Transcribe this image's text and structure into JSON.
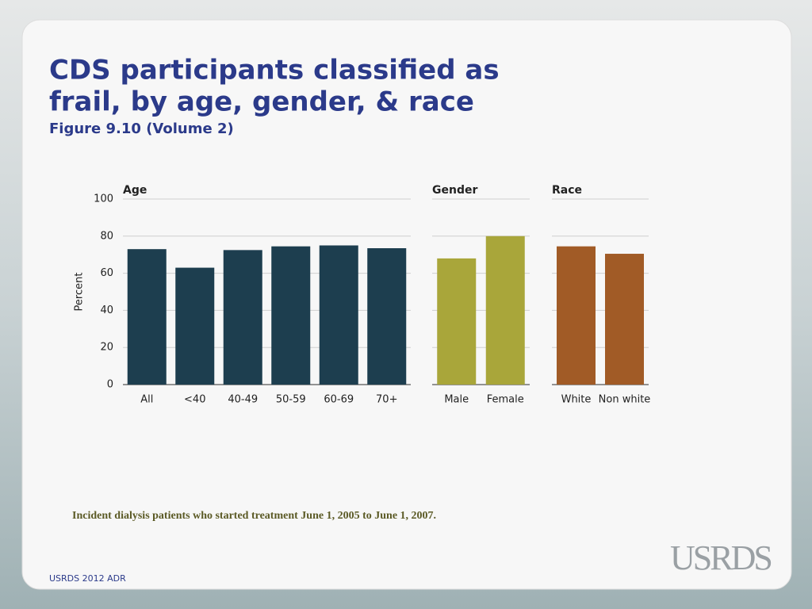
{
  "slide": {
    "title": [
      "CDS participants classified as",
      "frail, by age, gender, & race"
    ],
    "subtitle": "Figure 9.10 (Volume 2)",
    "note": "Incident dialysis patients who started treatment June 1, 2005 to June 1, 2007.",
    "footer": "USRDS 2012 ADR",
    "logo": "USRDS"
  },
  "chart_data": [
    {
      "type": "bar",
      "title": "Age",
      "y_label": "Percent",
      "categories": [
        "All",
        "<40",
        "40-49",
        "50-59",
        "60-69",
        "70+"
      ],
      "values": [
        73,
        63,
        72.5,
        74.5,
        75,
        73.5
      ],
      "color": "#1d3e4f",
      "ylim": [
        0,
        100
      ],
      "yticks": [
        0,
        20,
        40,
        60,
        80,
        100
      ],
      "grid": true
    },
    {
      "type": "bar",
      "title": "Gender",
      "categories": [
        "Male",
        "Female"
      ],
      "values": [
        68,
        80
      ],
      "color": "#a9a63a",
      "ylim": [
        0,
        100
      ],
      "grid": true
    },
    {
      "type": "bar",
      "title": "Race",
      "categories": [
        "White",
        "Non white"
      ],
      "values": [
        74.5,
        70.5
      ],
      "color": "#a15b26",
      "ylim": [
        0,
        100
      ],
      "grid": true
    }
  ]
}
